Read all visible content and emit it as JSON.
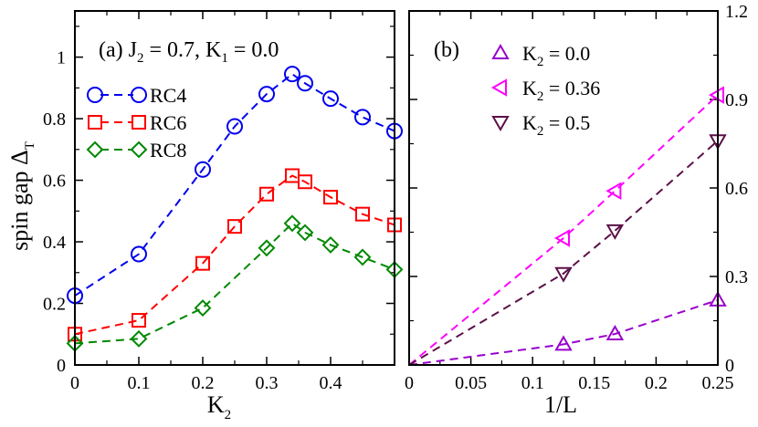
{
  "chart_data": [
    {
      "type": "line",
      "panel_label": "(a)",
      "annotation": {
        "j2": "J",
        "j2_sub": "2",
        "j2_val": " = 0.7, ",
        "k1": "K",
        "k1_sub": "1",
        "k1_val": " = 0.0"
      },
      "xlabel": "K",
      "xlabel_sub": "2",
      "ylabel": "spin gap Δ",
      "ylabel_sub": "T",
      "xlim": [
        0,
        0.5
      ],
      "ylim": [
        0,
        1.15
      ],
      "xticks": [
        0,
        0.1,
        0.2,
        0.3,
        0.4
      ],
      "xtick_labels": [
        "0",
        "0.1",
        "0.2",
        "0.3",
        "0.4"
      ],
      "yticks": [
        0,
        0.2,
        0.4,
        0.6,
        0.8,
        1.0
      ],
      "ytick_labels": [
        "0",
        "0.2",
        "0.4",
        "0.6",
        "0.8",
        "1"
      ],
      "legend_position": "upper-left",
      "series": [
        {
          "name": "RC4",
          "color": "#0000ee",
          "marker": "circle",
          "x": [
            0,
            0.1,
            0.2,
            0.25,
            0.3,
            0.34,
            0.36,
            0.4,
            0.45,
            0.5
          ],
          "y": [
            0.225,
            0.36,
            0.635,
            0.775,
            0.88,
            0.945,
            0.915,
            0.865,
            0.805,
            0.76
          ]
        },
        {
          "name": "RC6",
          "color": "#ff0000",
          "marker": "square",
          "x": [
            0,
            0.1,
            0.2,
            0.25,
            0.3,
            0.34,
            0.36,
            0.4,
            0.45,
            0.5
          ],
          "y": [
            0.1,
            0.145,
            0.33,
            0.45,
            0.555,
            0.615,
            0.595,
            0.545,
            0.49,
            0.455
          ]
        },
        {
          "name": "RC8",
          "color": "#008800",
          "marker": "diamond",
          "x": [
            0,
            0.1,
            0.2,
            0.3,
            0.34,
            0.36,
            0.4,
            0.45,
            0.5
          ],
          "y": [
            0.07,
            0.085,
            0.185,
            0.38,
            0.46,
            0.43,
            0.39,
            0.35,
            0.31
          ]
        }
      ]
    },
    {
      "type": "line",
      "panel_label": "(b)",
      "xlabel": "1/L",
      "xlim": [
        0,
        0.25
      ],
      "ylim": [
        0,
        1.2
      ],
      "xticks": [
        0,
        0.05,
        0.1,
        0.15,
        0.2,
        0.25
      ],
      "xtick_labels": [
        "0",
        "0.05",
        "0.1",
        "0.15",
        "0.2",
        "0.25"
      ],
      "yticks": [
        0,
        0.3,
        0.6,
        0.9,
        1.2
      ],
      "ytick_labels": [
        "0",
        "0.3",
        "0.6",
        "0.9",
        "1.2"
      ],
      "yaxis_side": "right",
      "legend_position": "upper-left",
      "series": [
        {
          "name": "K",
          "name_sub": "2",
          "name_val": " = 0.0",
          "color": "#9900cc",
          "marker": "triangle-up",
          "x": [
            0,
            0.125,
            0.1667,
            0.25
          ],
          "y": [
            0,
            0.07,
            0.105,
            0.22
          ]
        },
        {
          "name": "K",
          "name_sub": "2",
          "name_val": " = 0.36",
          "color": "#ff00ff",
          "marker": "triangle-left",
          "x": [
            0,
            0.125,
            0.1667,
            0.25
          ],
          "y": [
            0,
            0.43,
            0.59,
            0.915
          ]
        },
        {
          "name": "K",
          "name_sub": "2",
          "name_val": " = 0.5",
          "color": "#5c1048",
          "marker": "triangle-down",
          "x": [
            0,
            0.125,
            0.1667,
            0.25
          ],
          "y": [
            0,
            0.31,
            0.455,
            0.76
          ]
        }
      ]
    }
  ]
}
